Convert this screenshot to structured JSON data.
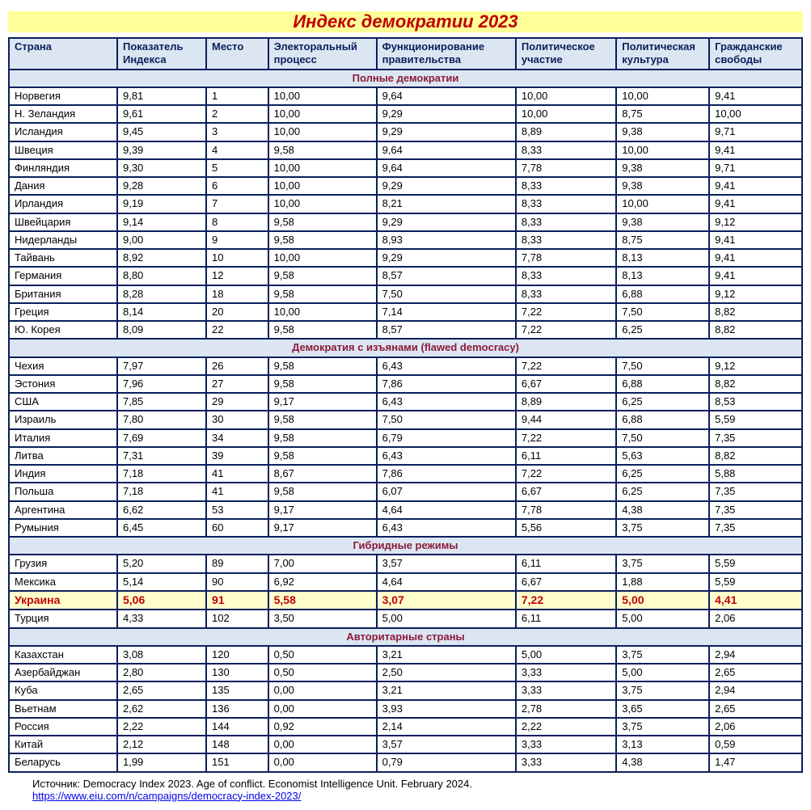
{
  "title": "Индекс демократии 2023",
  "title_color": "#c00000",
  "title_bg": "#ffff99",
  "border_color": "#0a1f5c",
  "header_bg": "#dce6f2",
  "header_color": "#0a1f5c",
  "section_bg": "#dce6f2",
  "section_color": "#8b1a3a",
  "highlight_bg": "#ffffcc",
  "highlight_color": "#c00000",
  "col_widths": [
    "14%",
    "11.5%",
    "8%",
    "14%",
    "18%",
    "13%",
    "12%",
    "12%"
  ],
  "columns": [
    "Страна",
    "Показатель Индекса",
    "Место",
    "Электоральный процесс",
    "Функционирование правительства",
    "Политическое участие",
    "Политическая культура",
    "Гражданские свободы"
  ],
  "sections": [
    {
      "label": "Полные демократии",
      "rows": [
        [
          "Норвегия",
          "9,81",
          "1",
          "10,00",
          "9,64",
          "10,00",
          "10,00",
          "9,41"
        ],
        [
          "Н. Зеландия",
          "9,61",
          "2",
          "10,00",
          "9,29",
          "10,00",
          "8,75",
          "10,00"
        ],
        [
          "Исландия",
          "9,45",
          "3",
          "10,00",
          "9,29",
          "8,89",
          "9,38",
          "9,71"
        ],
        [
          "Швеция",
          "9,39",
          "4",
          "9,58",
          "9,64",
          "8,33",
          "10,00",
          "9,41"
        ],
        [
          "Финляндия",
          "9,30",
          "5",
          "10,00",
          "9,64",
          "7,78",
          "9,38",
          "9,71"
        ],
        [
          "Дания",
          "9,28",
          "6",
          "10,00",
          "9,29",
          "8,33",
          "9,38",
          "9,41"
        ],
        [
          "Ирландия",
          "9,19",
          "7",
          "10,00",
          "8,21",
          "8,33",
          "10,00",
          "9,41"
        ],
        [
          "Швейцария",
          "9,14",
          "8",
          "9,58",
          "9,29",
          "8,33",
          "9,38",
          "9,12"
        ],
        [
          "Нидерланды",
          "9,00",
          "9",
          "9,58",
          "8,93",
          "8,33",
          "8,75",
          "9,41"
        ],
        [
          "Тайвань",
          "8,92",
          "10",
          "10,00",
          "9,29",
          "7,78",
          "8,13",
          "9,41"
        ],
        [
          "Германия",
          "8,80",
          "12",
          "9,58",
          "8,57",
          "8,33",
          "8,13",
          "9,41"
        ],
        [
          "Британия",
          "8,28",
          "18",
          "9,58",
          "7,50",
          "8,33",
          "6,88",
          "9,12"
        ],
        [
          "Греция",
          "8,14",
          "20",
          "10,00",
          "7,14",
          "7,22",
          "7,50",
          "8,82"
        ],
        [
          "Ю. Корея",
          "8,09",
          "22",
          "9,58",
          "8,57",
          "7,22",
          "6,25",
          "8,82"
        ]
      ]
    },
    {
      "label": "Демократия с изъянами (flawed democracy)",
      "rows": [
        [
          "Чехия",
          "7,97",
          "26",
          "9,58",
          "6,43",
          "7,22",
          "7,50",
          "9,12"
        ],
        [
          "Эстония",
          "7,96",
          "27",
          "9,58",
          "7,86",
          "6,67",
          "6,88",
          "8,82"
        ],
        [
          "США",
          "7,85",
          "29",
          "9,17",
          "6,43",
          "8,89",
          "6,25",
          "8,53"
        ],
        [
          "Израиль",
          "7,80",
          "30",
          "9,58",
          "7,50",
          "9,44",
          "6,88",
          "5,59"
        ],
        [
          "Италия",
          "7,69",
          "34",
          "9,58",
          "6,79",
          "7,22",
          "7,50",
          "7,35"
        ],
        [
          "Литва",
          "7,31",
          "39",
          "9,58",
          "6,43",
          "6,11",
          "5,63",
          "8,82"
        ],
        [
          "Индия",
          "7,18",
          "41",
          "8,67",
          "7,86",
          "7,22",
          "6,25",
          "5,88"
        ],
        [
          "Польша",
          "7,18",
          "41",
          "9,58",
          "6,07",
          "6,67",
          "6,25",
          "7,35"
        ],
        [
          "Аргентина",
          "6,62",
          "53",
          "9,17",
          "4,64",
          "7,78",
          "4,38",
          "7,35"
        ],
        [
          "Румыния",
          "6,45",
          "60",
          "9,17",
          "6,43",
          "5,56",
          "3,75",
          "7,35"
        ]
      ]
    },
    {
      "label": "Гибридные режимы",
      "rows": [
        [
          "Грузия",
          "5,20",
          "89",
          "7,00",
          "3,57",
          "6,11",
          "3,75",
          "5,59"
        ],
        [
          "Мексика",
          "5,14",
          "90",
          "6,92",
          "4,64",
          "6,67",
          "1,88",
          "5,59"
        ],
        [
          "Украина",
          "5,06",
          "91",
          "5,58",
          "3,07",
          "7,22",
          "5,00",
          "4,41"
        ],
        [
          "Турция",
          "4,33",
          "102",
          "3,50",
          "5,00",
          "6,11",
          "5,00",
          "2,06"
        ]
      ],
      "highlight_index": 2
    },
    {
      "label": "Авторитарные страны",
      "rows": [
        [
          "Казахстан",
          "3,08",
          "120",
          "0,50",
          "3,21",
          "5,00",
          "3,75",
          "2,94"
        ],
        [
          "Азербайджан",
          "2,80",
          "130",
          "0,50",
          "2,50",
          "3,33",
          "5,00",
          "2,65"
        ],
        [
          "Куба",
          "2,65",
          "135",
          "0,00",
          "3,21",
          "3,33",
          "3,75",
          "2,94"
        ],
        [
          "Вьетнам",
          "2,62",
          "136",
          "0,00",
          "3,93",
          "2,78",
          "3,65",
          "2,65"
        ],
        [
          "Россия",
          "2,22",
          "144",
          "0,92",
          "2,14",
          "2,22",
          "3,75",
          "2,06"
        ],
        [
          "Китай",
          "2,12",
          "148",
          "0,00",
          "3,57",
          "3,33",
          "3,13",
          "0,59"
        ],
        [
          "Беларусь",
          "1,99",
          "151",
          "0,00",
          "0,79",
          "3,33",
          "4,38",
          "1,47"
        ]
      ]
    }
  ],
  "footer_text": "Источник: Democracy Index 2023. Age of conflict. Economist Intelligence Unit. February 2024.",
  "footer_link_text": "https://www.eiu.com/n/campaigns/democracy-index-2023/",
  "footer_link_href": "https://www.eiu.com/n/campaigns/democracy-index-2023/"
}
